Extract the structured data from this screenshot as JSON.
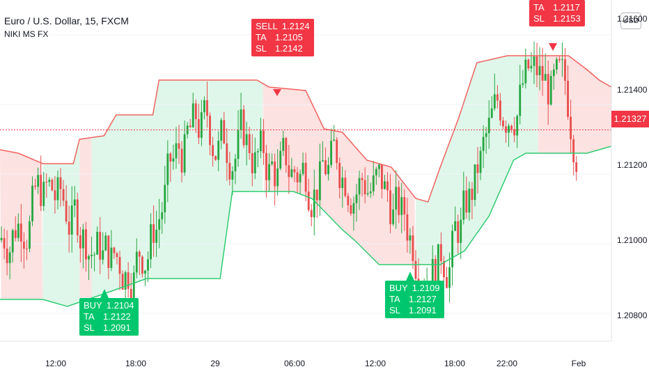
{
  "header": {
    "symbol_title": "Euro / U.S. Dollar, 15, FXCM",
    "indicator_name": "NIKI MS FX"
  },
  "controls": {
    "currency_label": "USD"
  },
  "price_axis": {
    "ticks": [
      "1.21600",
      "1.21400",
      "1.21200",
      "1.21000",
      "1.20800"
    ],
    "current_price": "1.21327"
  },
  "time_axis": {
    "ticks": [
      "12:00",
      "18:00",
      "29",
      "06:00",
      "12:00",
      "18:00",
      "22:00",
      "Feb"
    ]
  },
  "signals": [
    {
      "type": "sell",
      "rows": [
        {
          "k": "SELL",
          "v": "1.2124"
        },
        {
          "k": "TA",
          "v": "1.2105"
        },
        {
          "k": "SL",
          "v": "1.2142"
        }
      ]
    },
    {
      "type": "sell",
      "rows": [
        {
          "k": "TA",
          "v": "1.2117"
        },
        {
          "k": "SL",
          "v": "1.2153"
        }
      ]
    },
    {
      "type": "buy",
      "rows": [
        {
          "k": "BUY",
          "v": "1.2104"
        },
        {
          "k": "TA",
          "v": "1.2122"
        },
        {
          "k": "SL",
          "v": "1.2091"
        }
      ]
    },
    {
      "type": "buy",
      "rows": [
        {
          "k": "BUY",
          "v": "1.2109"
        },
        {
          "k": "TA",
          "v": "1.2127"
        },
        {
          "k": "SL",
          "v": "1.2091"
        }
      ]
    }
  ],
  "colors": {
    "bull": "#26a641",
    "bear": "#e84d4d",
    "sell_zone": "#fde2e2",
    "buy_zone": "#dff7ea",
    "upper_band": "#f0625f",
    "lower_band": "#2ecc71",
    "current_line": "#f23645"
  },
  "chart_data": {
    "type": "candlestick",
    "symbol": "EUR/USD",
    "timeframe_minutes": 15,
    "price_range": [
      1.2072,
      1.217
    ],
    "upper_band_path": [
      [
        0,
        1.2127
      ],
      [
        0.03,
        1.2126
      ],
      [
        0.07,
        1.2123
      ],
      [
        0.12,
        1.2123
      ],
      [
        0.13,
        1.213
      ],
      [
        0.17,
        1.2131
      ],
      [
        0.19,
        1.2137
      ],
      [
        0.25,
        1.2137
      ],
      [
        0.26,
        1.2147
      ],
      [
        0.42,
        1.2147
      ],
      [
        0.44,
        1.2145
      ],
      [
        0.5,
        1.2144
      ],
      [
        0.53,
        1.2133
      ],
      [
        0.56,
        1.2132
      ],
      [
        0.6,
        1.2124
      ],
      [
        0.64,
        1.2122
      ],
      [
        0.68,
        1.2113
      ],
      [
        0.7,
        1.2112
      ],
      [
        0.72,
        1.2122
      ],
      [
        0.75,
        1.2136
      ],
      [
        0.78,
        1.2152
      ],
      [
        0.83,
        1.2154
      ],
      [
        0.93,
        1.2154
      ],
      [
        0.96,
        1.215
      ],
      [
        0.98,
        1.2147
      ],
      [
        1,
        1.2145
      ]
    ],
    "lower_band_path": [
      [
        0,
        1.2084
      ],
      [
        0.07,
        1.2084
      ],
      [
        0.11,
        1.2082
      ],
      [
        0.16,
        1.2085
      ],
      [
        0.24,
        1.209
      ],
      [
        0.36,
        1.209
      ],
      [
        0.38,
        1.2115
      ],
      [
        0.48,
        1.2115
      ],
      [
        0.51,
        1.2113
      ],
      [
        0.56,
        1.2104
      ],
      [
        0.58,
        1.2101
      ],
      [
        0.62,
        1.2094
      ],
      [
        0.72,
        1.2094
      ],
      [
        0.76,
        1.2098
      ],
      [
        0.8,
        1.2108
      ],
      [
        0.84,
        1.2124
      ],
      [
        0.86,
        1.2126
      ],
      [
        0.96,
        1.2126
      ],
      [
        1,
        1.2128
      ]
    ],
    "sell_zones": [
      [
        0,
        0.07
      ],
      [
        0.13,
        0.15
      ],
      [
        0.43,
        0.68
      ],
      [
        0.88,
        1
      ]
    ],
    "buy_zones": [
      [
        0.07,
        0.13
      ],
      [
        0.15,
        0.43
      ],
      [
        0.68,
        0.88
      ]
    ],
    "current_price": 1.21327
  }
}
